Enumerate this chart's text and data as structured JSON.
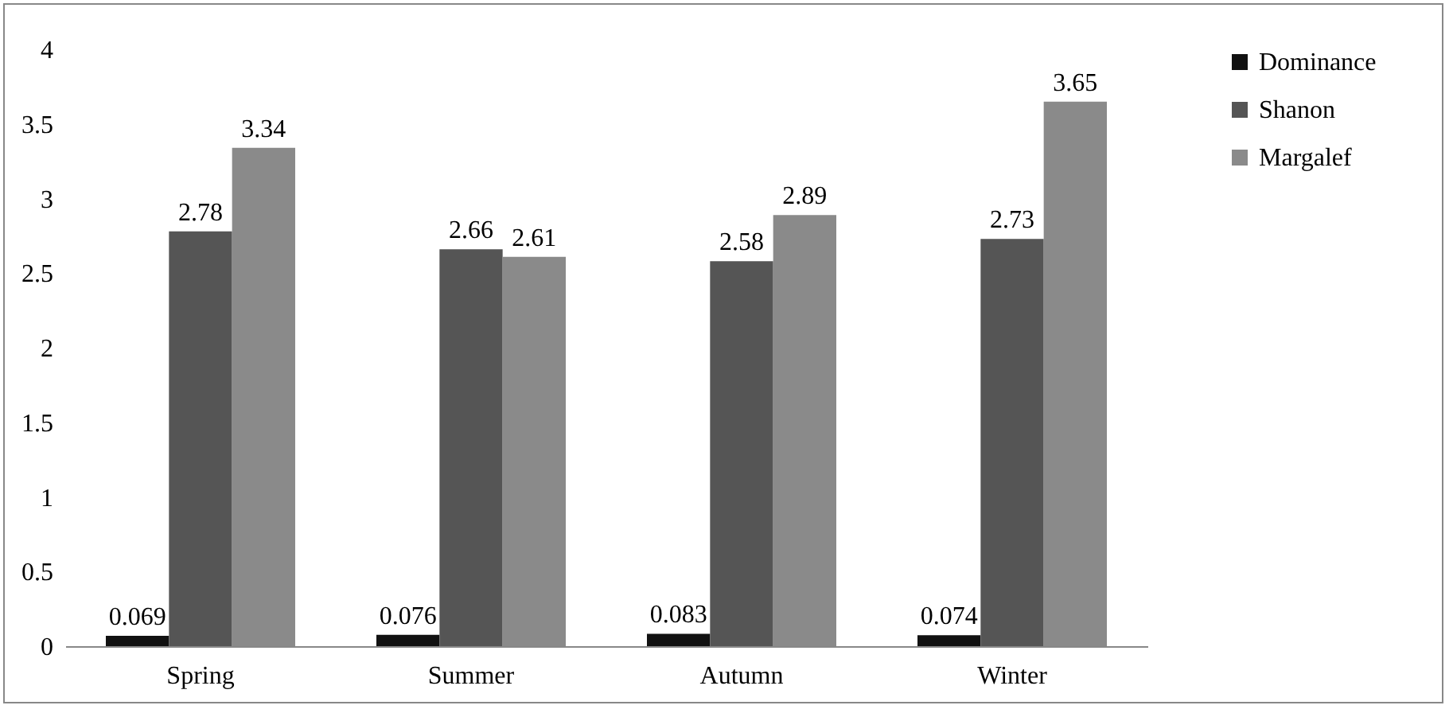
{
  "chart_data": {
    "type": "bar",
    "categories": [
      "Spring",
      "Summer",
      "Autumn",
      "Winter"
    ],
    "series": [
      {
        "name": "Dominance",
        "color": "#111111",
        "values": [
          0.069,
          0.076,
          0.083,
          0.074
        ]
      },
      {
        "name": "Shanon",
        "color": "#555555",
        "values": [
          2.78,
          2.66,
          2.58,
          2.73
        ]
      },
      {
        "name": "Margalef",
        "color": "#8a8a8a",
        "values": [
          3.34,
          2.61,
          2.89,
          3.65
        ]
      }
    ],
    "ylim": [
      0,
      4
    ],
    "yticks": [
      0,
      0.5,
      1,
      1.5,
      2,
      2.5,
      3,
      3.5,
      4
    ],
    "data_labels": true,
    "legend": "right",
    "grid": false
  }
}
